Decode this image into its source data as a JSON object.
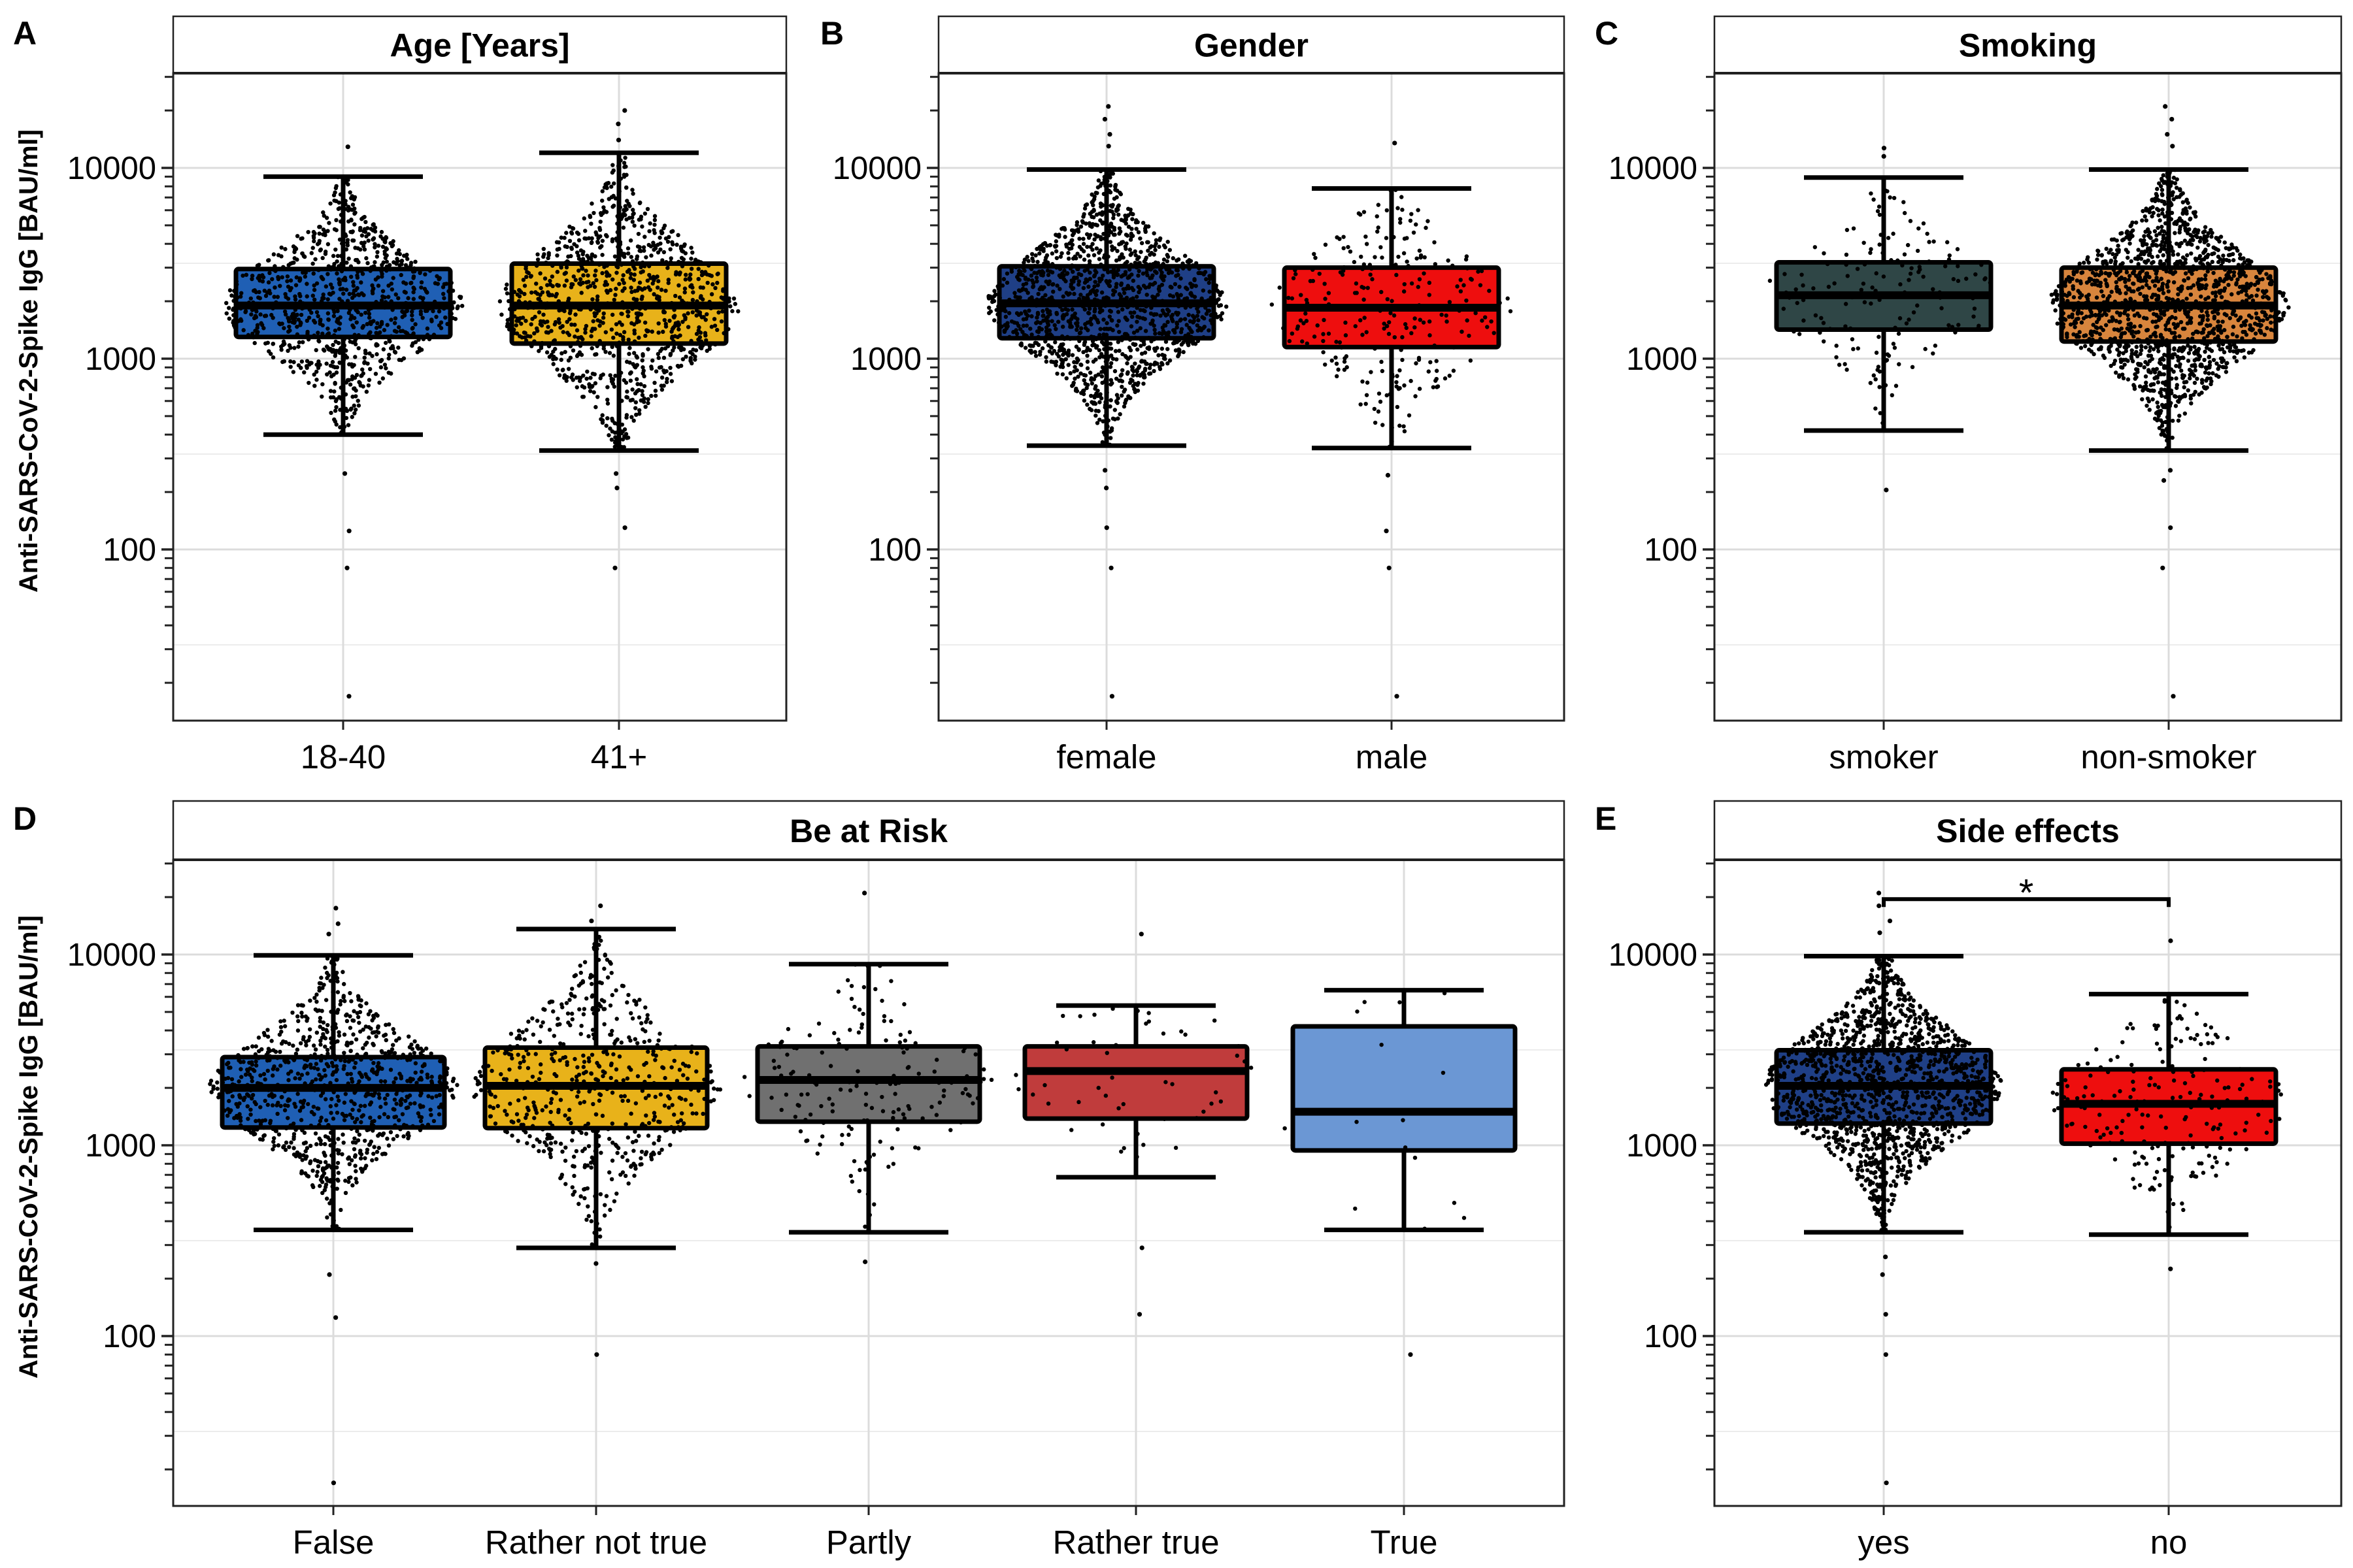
{
  "chart_data": [
    {
      "type": "box",
      "panel": "A",
      "title": "Age [Years]",
      "ylabel": "Anti-SARS-CoV-2-Spike IgG [BAU/ml]",
      "yscale": "log",
      "ylim": [
        15,
        30000
      ],
      "yticks": [
        "100",
        "1000",
        "10000"
      ],
      "categories": [
        "18-40",
        "41+"
      ],
      "colors": [
        "#1f5fb4",
        "#e8b21a"
      ],
      "boxes": [
        {
          "whisker_low": 400,
          "q1": 1300,
          "median": 1900,
          "q3": 2950,
          "whisker_high": 9000,
          "points": 900,
          "outliers": [
            250,
            125,
            80,
            17,
            12900
          ]
        },
        {
          "whisker_low": 330,
          "q1": 1200,
          "median": 1900,
          "q3": 3150,
          "whisker_high": 12000,
          "points": 1000,
          "outliers": [
            250,
            210,
            130,
            80,
            14000,
            17000,
            20000
          ]
        }
      ]
    },
    {
      "type": "box",
      "panel": "B",
      "title": "Gender",
      "yscale": "log",
      "ylim": [
        15,
        30000
      ],
      "yticks": [
        "100",
        "1000",
        "10000"
      ],
      "categories": [
        "female",
        "male"
      ],
      "colors": [
        "#1f3f86",
        "#ee0e0e"
      ],
      "boxes": [
        {
          "whisker_low": 350,
          "q1": 1280,
          "median": 1950,
          "q3": 3050,
          "whisker_high": 9800,
          "points": 1400,
          "outliers": [
            260,
            210,
            130,
            80,
            17,
            13000,
            15000,
            18000,
            21000
          ]
        },
        {
          "whisker_low": 340,
          "q1": 1150,
          "median": 1850,
          "q3": 3000,
          "whisker_high": 7800,
          "points": 260,
          "outliers": [
            245,
            125,
            80,
            17,
            13500
          ]
        }
      ]
    },
    {
      "type": "box",
      "panel": "C",
      "title": "Smoking",
      "yscale": "log",
      "ylim": [
        15,
        30000
      ],
      "yticks": [
        "100",
        "1000",
        "10000"
      ],
      "categories": [
        "smoker",
        "non-smoker"
      ],
      "colors": [
        "#2f4646",
        "#d8853d"
      ],
      "boxes": [
        {
          "whisker_low": 420,
          "q1": 1420,
          "median": 2150,
          "q3": 3200,
          "whisker_high": 8900,
          "points": 160,
          "outliers": [
            205,
            11500,
            12700
          ]
        },
        {
          "whisker_low": 330,
          "q1": 1230,
          "median": 1900,
          "q3": 3000,
          "whisker_high": 9800,
          "points": 1500,
          "outliers": [
            260,
            230,
            130,
            80,
            17,
            13000,
            15000,
            18000,
            21000
          ]
        }
      ]
    },
    {
      "type": "box",
      "panel": "D",
      "title": "Be at Risk",
      "ylabel": "Anti-SARS-CoV-2-Spike IgG [BAU/ml]",
      "yscale": "log",
      "ylim": [
        15,
        30000
      ],
      "yticks": [
        "100",
        "1000",
        "10000"
      ],
      "categories": [
        "False",
        "Rather not true",
        "Partly",
        "Rather true",
        "True"
      ],
      "colors": [
        "#1f5fb4",
        "#e8b21a",
        "#707070",
        "#c03c3c",
        "#6b97d4"
      ],
      "boxes": [
        {
          "whisker_low": 360,
          "q1": 1240,
          "median": 2000,
          "q3": 2900,
          "whisker_high": 9900,
          "points": 900,
          "outliers": [
            210,
            125,
            17,
            12800,
            14500,
            17500
          ]
        },
        {
          "whisker_low": 290,
          "q1": 1230,
          "median": 2050,
          "q3": 3250,
          "whisker_high": 13600,
          "points": 560,
          "outliers": [
            240,
            80,
            15000,
            18000
          ]
        },
        {
          "whisker_low": 350,
          "q1": 1330,
          "median": 2200,
          "q3": 3300,
          "whisker_high": 8900,
          "points": 170,
          "outliers": [
            245,
            21000
          ]
        },
        {
          "whisker_low": 680,
          "q1": 1380,
          "median": 2450,
          "q3": 3300,
          "whisker_high": 5400,
          "points": 50,
          "outliers": [
            290,
            130,
            12800
          ]
        },
        {
          "whisker_low": 360,
          "q1": 940,
          "median": 1500,
          "q3": 4200,
          "whisker_high": 6500,
          "points": 16,
          "outliers": [
            80
          ]
        }
      ]
    },
    {
      "type": "box",
      "panel": "E",
      "title": "Side effects",
      "yscale": "log",
      "ylim": [
        15,
        30000
      ],
      "yticks": [
        "100",
        "1000",
        "10000"
      ],
      "categories": [
        "yes",
        "no"
      ],
      "colors": [
        "#1f3f86",
        "#ee0e0e"
      ],
      "significance": "*",
      "boxes": [
        {
          "whisker_low": 350,
          "q1": 1300,
          "median": 2050,
          "q3": 3150,
          "whisker_high": 9800,
          "points": 1500,
          "outliers": [
            260,
            210,
            130,
            80,
            17,
            13000,
            15000,
            18000,
            21000
          ]
        },
        {
          "whisker_low": 340,
          "q1": 1020,
          "median": 1650,
          "q3": 2500,
          "whisker_high": 6200,
          "points": 200,
          "outliers": [
            225,
            11800
          ]
        }
      ]
    }
  ]
}
